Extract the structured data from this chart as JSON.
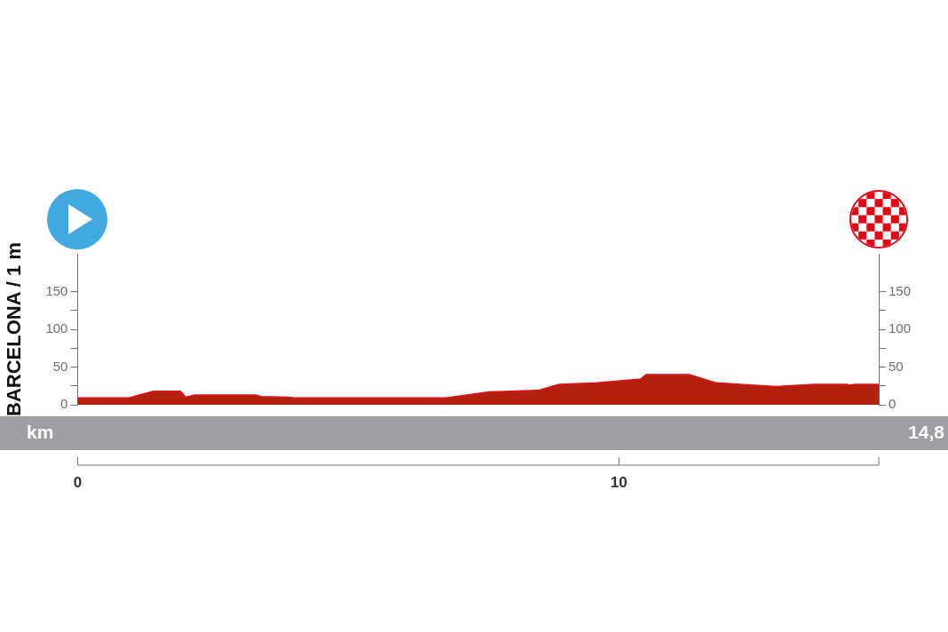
{
  "chart_data": {
    "type": "area",
    "ylabel": "BARCELONA / 1 m",
    "xlabel": "km",
    "annotations": [
      "14,8"
    ],
    "x": [
      0,
      0.93,
      1.4,
      1.9,
      2.0,
      2.16,
      2.7,
      3.3,
      3.38,
      3.9,
      4.0,
      6.8,
      7.6,
      8.5,
      8.9,
      9.6,
      10.4,
      10.5,
      11.3,
      11.8,
      12.9,
      13.6,
      14.2,
      14.27,
      14.35,
      14.8
    ],
    "series": [
      {
        "color": "#b3200e",
        "values": [
          9,
          9,
          18,
          18,
          10,
          13,
          13,
          13,
          11,
          10,
          9,
          9,
          17,
          19,
          27,
          29,
          34,
          40,
          40,
          29,
          24,
          27,
          27,
          26,
          27,
          27
        ]
      }
    ],
    "xlim": [
      0,
      14.8
    ],
    "xticks": [
      0,
      10,
      {
        "value": 14.8,
        "label": null
      }
    ],
    "ylim": [
      0,
      200
    ],
    "yticks": [
      0,
      {
        "value": 25,
        "label": null
      },
      50,
      {
        "value": 75,
        "label": null
      },
      100,
      {
        "value": 125,
        "label": null
      },
      150
    ],
    "y2lim": [
      0,
      200
    ],
    "y2ticks": [
      0,
      {
        "value": 25,
        "label": null
      },
      50,
      {
        "value": 75,
        "label": null
      },
      100,
      {
        "value": 125,
        "label": null
      },
      150
    ],
    "grid": false,
    "legend": false
  }
}
